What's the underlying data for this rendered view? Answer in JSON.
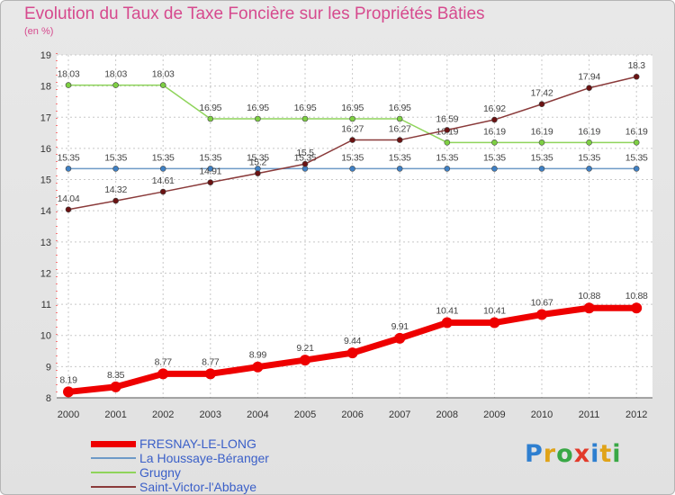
{
  "chart_data": {
    "type": "line",
    "title": "Evolution du Taux de Taxe Foncière sur les Propriétés Bâties",
    "subtitle": "(en %)",
    "categories": [
      "2000",
      "2001",
      "2002",
      "2003",
      "2004",
      "2005",
      "2006",
      "2007",
      "2008",
      "2009",
      "2010",
      "2011",
      "2012"
    ],
    "ylim": [
      8,
      19
    ],
    "yticks": [
      "8",
      "9",
      "10",
      "11",
      "12",
      "13",
      "14",
      "15",
      "16",
      "17",
      "18",
      "19"
    ],
    "grid": true,
    "legend_position": "bottom-left",
    "series": [
      {
        "name": "FRESNAY-LE-LONG",
        "color": "#ee0000",
        "marker": "#ee0000",
        "width": 7,
        "values": [
          8.19,
          8.35,
          8.77,
          8.77,
          8.99,
          9.21,
          9.44,
          9.91,
          10.41,
          10.41,
          10.67,
          10.88,
          10.88
        ],
        "labels": [
          "8.19",
          "8.35",
          "8.77",
          "8.77",
          "8.99",
          "9.21",
          "9.44",
          "9.91",
          "10.41",
          "10.41",
          "10.67",
          "10.88",
          "10.88"
        ]
      },
      {
        "name": "La Houssaye-Béranger",
        "color": "#6e9ac7",
        "marker": "#3f80c4",
        "width": 1.5,
        "values": [
          15.35,
          15.35,
          15.35,
          15.35,
          15.35,
          15.35,
          15.35,
          15.35,
          15.35,
          15.35,
          15.35,
          15.35,
          15.35
        ],
        "labels": [
          "15.35",
          "15.35",
          "15.35",
          "15.35",
          "15.35",
          "15.35",
          "15.35",
          "15.35",
          "15.35",
          "15.35",
          "15.35",
          "15.35",
          "15.35"
        ]
      },
      {
        "name": "Grugny",
        "color": "#8fd45b",
        "marker": "#7ed043",
        "width": 1.5,
        "values": [
          18.03,
          18.03,
          18.03,
          16.95,
          16.95,
          16.95,
          16.95,
          16.95,
          16.19,
          16.19,
          16.19,
          16.19,
          16.19
        ],
        "labels": [
          "18.03",
          "18.03",
          "18.03",
          "16.95",
          "16.95",
          "16.95",
          "16.95",
          "16.95",
          "16.19",
          "16.19",
          "16.19",
          "16.19",
          "16.19"
        ]
      },
      {
        "name": "Saint-Victor-l'Abbaye",
        "color": "#8a3a3a",
        "marker": "#6b1212",
        "width": 1.5,
        "values": [
          14.04,
          14.32,
          14.61,
          14.91,
          15.2,
          15.5,
          16.27,
          16.27,
          16.59,
          16.92,
          17.42,
          17.94,
          18.3
        ],
        "labels": [
          "14.04",
          "14.32",
          "14.61",
          "14.91",
          "15.2",
          "15.5",
          "16.27",
          "16.27",
          "16.59",
          "16.92",
          "17.42",
          "17.94",
          "18.3"
        ]
      }
    ]
  },
  "legend": {
    "items": [
      {
        "label": "FRESNAY-LE-LONG",
        "color": "#ee0000"
      },
      {
        "label": "La Houssaye-Béranger",
        "color": "#6e9ac7"
      },
      {
        "label": "Grugny",
        "color": "#8fd45b"
      },
      {
        "label": "Saint-Victor-l'Abbaye",
        "color": "#8a3a3a"
      }
    ]
  },
  "logo": {
    "text": "Proxiti",
    "letters": [
      {
        "ch": "P",
        "color": "#2e7fd0"
      },
      {
        "ch": "r",
        "color": "#e0a318"
      },
      {
        "ch": "o",
        "color": "#39a845"
      },
      {
        "ch": "x",
        "color": "#e23a2a"
      },
      {
        "ch": "i",
        "color": "#2e7fd0"
      },
      {
        "ch": "t",
        "color": "#e0a318"
      },
      {
        "ch": "i",
        "color": "#39a845"
      }
    ]
  }
}
